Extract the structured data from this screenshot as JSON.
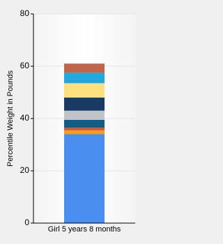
{
  "chart_data": {
    "type": "stacked_bar",
    "y_label": "Percentile Weight in Pounds",
    "categories": [
      "Girl 5 years 8 months"
    ],
    "series": [
      {
        "color": "#4a8ff0",
        "values": [
          34
        ]
      },
      {
        "color": "#f0a020",
        "values": [
          1.5
        ]
      },
      {
        "color": "#e0532a",
        "values": [
          1
        ]
      },
      {
        "color": "#0e5e8a",
        "values": [
          3
        ]
      },
      {
        "color": "#c0c4c8",
        "values": [
          3.5
        ]
      },
      {
        "color": "#1a3a66",
        "values": [
          5
        ]
      },
      {
        "color": "#ffe080",
        "values": [
          5.5
        ]
      },
      {
        "color": "#20a8e0",
        "values": [
          4
        ]
      },
      {
        "color": "#c0654a",
        "values": [
          3.5
        ]
      }
    ],
    "ylim": [
      0,
      80
    ],
    "yticks": [
      0,
      20,
      40,
      60,
      80
    ],
    "grid": true
  }
}
